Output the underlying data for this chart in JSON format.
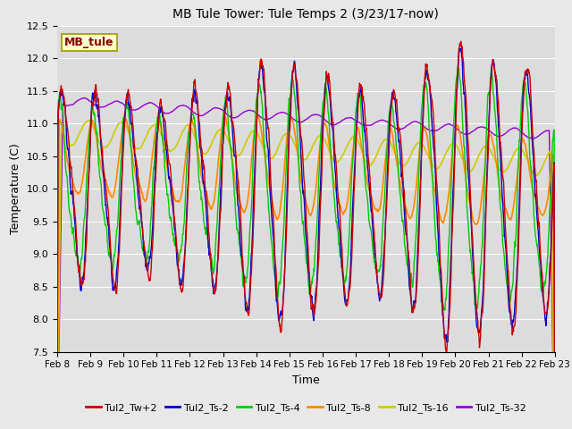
{
  "title": "MB Tule Tower: Tule Temps 2 (3/23/17-now)",
  "xlabel": "Time",
  "ylabel": "Temperature (C)",
  "ylim": [
    7.5,
    12.5
  ],
  "yticks": [
    7.5,
    8.0,
    8.5,
    9.0,
    9.5,
    10.0,
    10.5,
    11.0,
    11.5,
    12.0,
    12.5
  ],
  "xtick_labels": [
    "Feb 8",
    "Feb 9",
    "Feb 10",
    "Feb 11",
    "Feb 12",
    "Feb 13",
    "Feb 14",
    "Feb 15",
    "Feb 16",
    "Feb 17",
    "Feb 18",
    "Feb 19",
    "Feb 20",
    "Feb 21",
    "Feb 22",
    "Feb 23"
  ],
  "fig_bg": "#e8e8e8",
  "plot_bg": "#dcdcdc",
  "grid_color": "#ffffff",
  "series_colors": {
    "Tul2_Tw+2": "#cc0000",
    "Tul2_Ts-2": "#0000cc",
    "Tul2_Ts-4": "#00cc00",
    "Tul2_Ts-8": "#ff8800",
    "Tul2_Ts-16": "#cccc00",
    "Tul2_Ts-32": "#9900cc"
  },
  "legend_label": "MB_tule",
  "seed": 17
}
